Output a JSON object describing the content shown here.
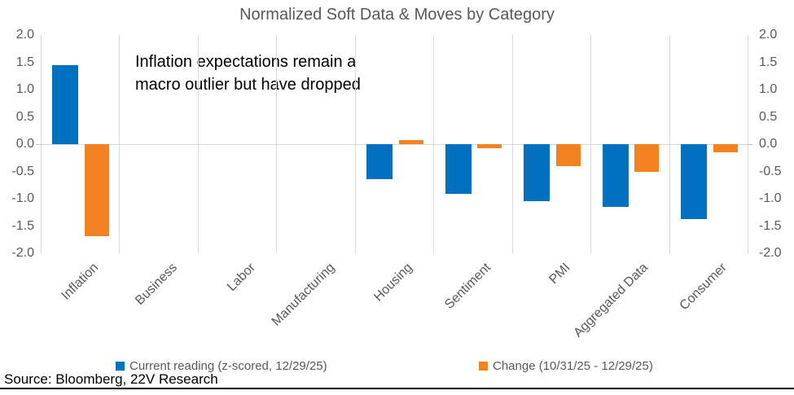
{
  "title": "Normalized Soft Data & Moves by Category",
  "annotation": {
    "line1": "Inflation expectations remain a",
    "line2": "macro outlier but have dropped"
  },
  "legend": [
    {
      "label": "Current reading (z-scored, 12/29/25)",
      "color": "#0070c0"
    },
    {
      "label": "Change (10/31/25 - 12/29/25)",
      "color": "#f58220"
    }
  ],
  "source": "Source: Bloomberg, 22V Research",
  "chart_data": {
    "type": "bar",
    "title": "Normalized Soft Data & Moves by Category",
    "categories": [
      "Inflation",
      "Business",
      "Labor",
      "Manufacturing",
      "Housing",
      "Sentiment",
      "PMI",
      "Aggregated Data",
      "Consumer"
    ],
    "series": [
      {
        "name": "Current reading (z-scored, 12/29/25)",
        "color": "#0070c0",
        "values": [
          1.45,
          0,
          0,
          0,
          -0.64,
          -0.91,
          -1.04,
          -1.15,
          -1.37
        ]
      },
      {
        "name": "Change (10/31/25 - 12/29/25)",
        "color": "#f58220",
        "values": [
          -1.69,
          0,
          0,
          0,
          0.07,
          -0.07,
          -0.4,
          -0.51,
          -0.15
        ]
      }
    ],
    "ylim": [
      -2.0,
      2.0
    ],
    "yticks": [
      "2.0",
      "1.5",
      "1.0",
      "0.5",
      "0.0",
      "-0.5",
      "-1.0",
      "-1.5",
      "-2.0"
    ],
    "grid": "vertical-category-boundaries",
    "legend_position": "bottom",
    "xlabel": "",
    "ylabel": "",
    "colors": {
      "gridline": "#d9d9d9",
      "axis_text": "#595959",
      "annotation_text": "#000000"
    }
  }
}
